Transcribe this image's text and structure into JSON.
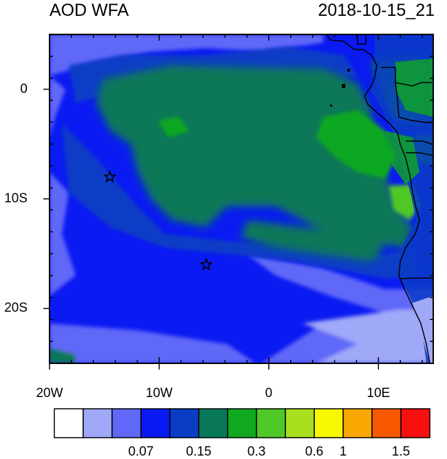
{
  "title_left": "AOD WFA",
  "title_right": "2018-10-15_21",
  "map": {
    "lon_range": [
      -20,
      15
    ],
    "lat_range": [
      -25,
      5
    ],
    "x_ticks": [
      {
        "lon": -20,
        "label": "20W"
      },
      {
        "lon": -10,
        "label": "10W"
      },
      {
        "lon": 0,
        "label": "0"
      },
      {
        "lon": 10,
        "label": "10E"
      }
    ],
    "y_ticks": [
      {
        "lat": 0,
        "label": "0"
      },
      {
        "lat": -10,
        "label": "10S"
      },
      {
        "lat": -20,
        "label": "20S"
      }
    ],
    "markers": [
      {
        "type": "star",
        "lon": -14.5,
        "lat": -8.0
      },
      {
        "type": "star",
        "lon": -5.7,
        "lat": -16.0
      }
    ]
  },
  "colorbar": {
    "colors": [
      "#ffffff",
      "#a0a8f8",
      "#6068f8",
      "#0a1af2",
      "#0a3cc6",
      "#087858",
      "#10a820",
      "#50c828",
      "#a8e020",
      "#f8f800",
      "#f8a800",
      "#f85800",
      "#f81010"
    ],
    "labels": [
      {
        "after_index": 2,
        "text": "0.07"
      },
      {
        "after_index": 4,
        "text": "0.15"
      },
      {
        "after_index": 6,
        "text": "0.3"
      },
      {
        "after_index": 8,
        "text": "0.6"
      },
      {
        "after_index": 9,
        "text": "1"
      },
      {
        "after_index": 11,
        "text": "1.5"
      }
    ]
  }
}
